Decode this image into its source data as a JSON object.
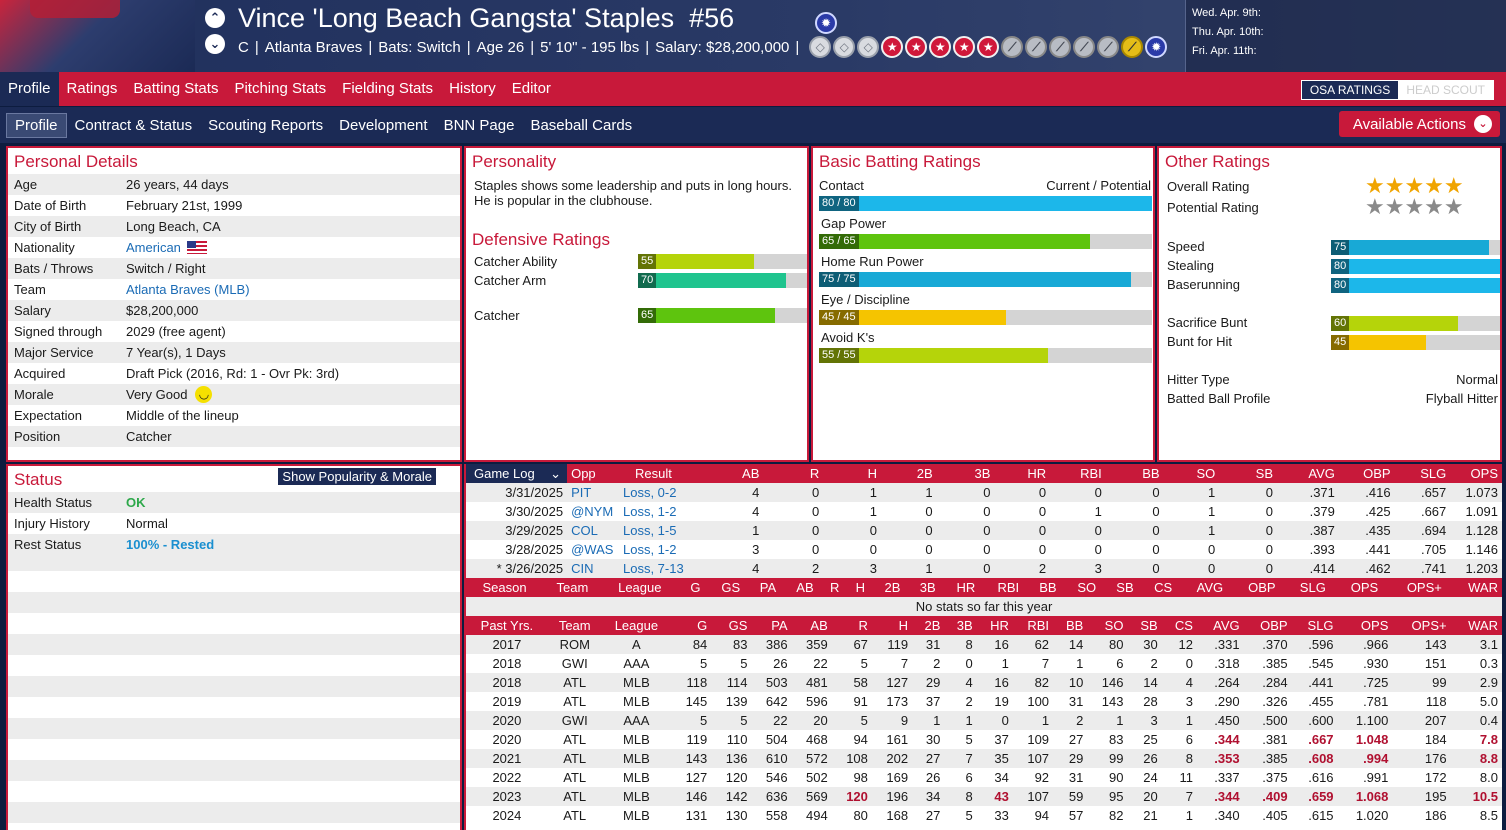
{
  "header": {
    "name": "Vince 'Long Beach Gangsta' Staples",
    "number": "#56",
    "position": "C",
    "team": "Atlanta Braves",
    "bats": "Bats: Switch",
    "age": "Age 26",
    "size": "5' 10\" - 195 lbs",
    "salary": "Salary: $28,200,000",
    "chev_up": "⌃",
    "chev_down": "⌄",
    "badges": [
      {
        "kind": "silver",
        "glyph": "◇"
      },
      {
        "kind": "silver",
        "glyph": "◇"
      },
      {
        "kind": "silver",
        "glyph": "◇"
      },
      {
        "kind": "red",
        "glyph": "★"
      },
      {
        "kind": "red",
        "glyph": "★"
      },
      {
        "kind": "red",
        "glyph": "★"
      },
      {
        "kind": "red",
        "glyph": "★"
      },
      {
        "kind": "red",
        "glyph": "★"
      },
      {
        "kind": "bat",
        "glyph": "⟋"
      },
      {
        "kind": "bat",
        "glyph": "⟋"
      },
      {
        "kind": "bat",
        "glyph": "⟋"
      },
      {
        "kind": "bat",
        "glyph": "⟋"
      },
      {
        "kind": "bat",
        "glyph": "⟋"
      },
      {
        "kind": "gold",
        "glyph": "⟋"
      },
      {
        "kind": "blue",
        "glyph": "✹"
      }
    ],
    "allstar_glyph": "✹",
    "schedule": [
      "Wed. Apr. 9th:",
      "Thu. Apr. 10th:",
      "Fri. Apr. 11th:"
    ]
  },
  "nav": {
    "main": [
      "Profile",
      "Ratings",
      "Batting Stats",
      "Pitching Stats",
      "Fielding Stats",
      "History",
      "Editor"
    ],
    "active": "Profile",
    "osa_on": "OSA RATINGS",
    "osa_off": "HEAD SCOUT",
    "sub": [
      "Profile",
      "Contract & Status",
      "Scouting Reports",
      "Development",
      "BNN Page",
      "Baseball Cards"
    ],
    "actions": "Available Actions",
    "actions_chev": "⌄"
  },
  "personal": {
    "title": "Personal Details",
    "rows": [
      {
        "k": "Age",
        "v": "26 years, 44 days"
      },
      {
        "k": "Date of Birth",
        "v": "February 21st, 1999"
      },
      {
        "k": "City of Birth",
        "v": "Long Beach, CA"
      },
      {
        "k": "Nationality",
        "v": "American",
        "link": true,
        "flag": true
      },
      {
        "k": "Bats / Throws",
        "v": "Switch / Right"
      },
      {
        "k": "Team",
        "v": "Atlanta Braves (MLB)",
        "link": true
      },
      {
        "k": "Salary",
        "v": "$28,200,000"
      },
      {
        "k": "Signed through",
        "v": "2029 (free agent)"
      },
      {
        "k": "Major Service",
        "v": "7 Year(s), 1 Days"
      },
      {
        "k": "Acquired",
        "v": "Draft Pick (2016, Rd: 1 - Ovr Pk: 3rd)"
      },
      {
        "k": "Morale",
        "v": "Very Good",
        "smile": true
      },
      {
        "k": "Expectation",
        "v": "Middle of the lineup"
      },
      {
        "k": "Position",
        "v": "Catcher"
      }
    ]
  },
  "personality": {
    "title": "Personality",
    "text": "Staples shows some leadership and puts in long hours. He is popular in the clubhouse."
  },
  "defensive": {
    "title": "Defensive Ratings",
    "rows": [
      {
        "label": "Catcher Ability",
        "value": 55,
        "color": "#b5d40a"
      },
      {
        "label": "Catcher Arm",
        "value": 70,
        "color": "#1fc48e"
      },
      {
        "label": "Catcher",
        "value": 65,
        "color": "#5ec40e"
      }
    ]
  },
  "batting": {
    "title": "Basic Batting Ratings",
    "legend": "Current / Potential",
    "rows": [
      {
        "label": "Contact",
        "text": "80 / 80",
        "value": 80,
        "color": "#1cb7ea"
      },
      {
        "label": "Gap Power",
        "text": "65 / 65",
        "value": 65,
        "color": "#5ec40e"
      },
      {
        "label": "Home Run Power",
        "text": "75 / 75",
        "value": 75,
        "color": "#18a9d6"
      },
      {
        "label": "Eye / Discipline",
        "text": "45 / 45",
        "value": 45,
        "color": "#f5c400"
      },
      {
        "label": "Avoid K's",
        "text": "55 / 55",
        "value": 55,
        "color": "#b5d40a"
      }
    ]
  },
  "other": {
    "title": "Other Ratings",
    "overall_label": "Overall Rating",
    "overall_stars": "★★★★★",
    "potential_label": "Potential Rating",
    "potential_stars": "★★★★★",
    "overall_color": "#f0a400",
    "potential_color": "#8a8a8a",
    "bars": [
      {
        "label": "Speed",
        "value": 75,
        "color": "#18a9d6"
      },
      {
        "label": "Stealing",
        "value": 80,
        "color": "#1cb7ea"
      },
      {
        "label": "Baserunning",
        "value": 80,
        "color": "#1cb7ea"
      },
      {
        "label": "Sacrifice Bunt",
        "value": 60,
        "color": "#b5d40a"
      },
      {
        "label": "Bunt for Hit",
        "value": 45,
        "color": "#f5c400"
      }
    ],
    "hitter_type_label": "Hitter Type",
    "hitter_type": "Normal",
    "batted_label": "Batted Ball Profile",
    "batted": "Flyball Hitter"
  },
  "status": {
    "title": "Status",
    "button": "Show Popularity & Morale",
    "rows": [
      {
        "k": "Health Status",
        "v": "OK",
        "cls": "okg"
      },
      {
        "k": "Injury History",
        "v": "Normal",
        "cls": ""
      },
      {
        "k": "Rest Status",
        "v": "100% - Rested",
        "cls": "restb"
      }
    ]
  },
  "gamelog": {
    "selector": "Game Log",
    "selector_chev": "⌄",
    "headers": [
      "Opp",
      "Result",
      "AB",
      "R",
      "H",
      "2B",
      "3B",
      "HR",
      "RBI",
      "BB",
      "SO",
      "SB",
      "AVG",
      "OBP",
      "SLG",
      "OPS"
    ],
    "rows": [
      [
        "3/31/2025",
        "PIT",
        "Loss, 0-2",
        "4",
        "0",
        "1",
        "1",
        "0",
        "0",
        "0",
        "0",
        "1",
        "0",
        ".371",
        ".416",
        ".657",
        "1.073"
      ],
      [
        "3/30/2025",
        "@NYM",
        "Loss, 1-2",
        "4",
        "0",
        "1",
        "0",
        "0",
        "0",
        "1",
        "0",
        "1",
        "0",
        ".379",
        ".425",
        ".667",
        "1.091"
      ],
      [
        "3/29/2025",
        "COL",
        "Loss, 1-5",
        "1",
        "0",
        "0",
        "0",
        "0",
        "0",
        "0",
        "0",
        "1",
        "0",
        ".387",
        ".435",
        ".694",
        "1.128"
      ],
      [
        "3/28/2025",
        "@WAS",
        "Loss, 1-2",
        "3",
        "0",
        "0",
        "0",
        "0",
        "0",
        "0",
        "0",
        "0",
        "0",
        ".393",
        ".441",
        ".705",
        "1.146"
      ],
      [
        "* 3/26/2025",
        "CIN",
        "Loss, 7-13",
        "4",
        "2",
        "3",
        "1",
        "0",
        "2",
        "3",
        "0",
        "0",
        "0",
        ".414",
        ".462",
        ".741",
        "1.203"
      ]
    ]
  },
  "season": {
    "headers": [
      "Season",
      "Team",
      "League",
      "G",
      "GS",
      "PA",
      "AB",
      "R",
      "H",
      "2B",
      "3B",
      "HR",
      "RBI",
      "BB",
      "SO",
      "SB",
      "CS",
      "AVG",
      "OBP",
      "SLG",
      "OPS",
      "OPS+",
      "WAR"
    ],
    "empty": "No stats so far this year"
  },
  "past": {
    "headers": [
      "Past Yrs.",
      "Team",
      "League",
      "G",
      "GS",
      "PA",
      "AB",
      "R",
      "H",
      "2B",
      "3B",
      "HR",
      "RBI",
      "BB",
      "SO",
      "SB",
      "CS",
      "AVG",
      "OBP",
      "SLG",
      "OPS",
      "OPS+",
      "WAR"
    ],
    "rows": [
      [
        "2017",
        "ROM",
        "A",
        "84",
        "83",
        "386",
        "359",
        "67",
        "119",
        "31",
        "8",
        "16",
        "62",
        "14",
        "80",
        "30",
        "12",
        ".331",
        ".370",
        ".596",
        ".966",
        "143",
        "3.1"
      ],
      [
        "2018",
        "GWI",
        "AAA",
        "5",
        "5",
        "26",
        "22",
        "5",
        "7",
        "2",
        "0",
        "1",
        "7",
        "1",
        "6",
        "2",
        "0",
        ".318",
        ".385",
        ".545",
        ".930",
        "151",
        "0.3"
      ],
      [
        "2018",
        "ATL",
        "MLB",
        "118",
        "114",
        "503",
        "481",
        "58",
        "127",
        "29",
        "4",
        "16",
        "82",
        "10",
        "146",
        "14",
        "4",
        ".264",
        ".284",
        ".441",
        ".725",
        "99",
        "2.9"
      ],
      [
        "2019",
        "ATL",
        "MLB",
        "145",
        "139",
        "642",
        "596",
        "91",
        "173",
        "37",
        "2",
        "19",
        "100",
        "31",
        "143",
        "28",
        "3",
        ".290",
        ".326",
        ".455",
        ".781",
        "118",
        "5.0"
      ],
      [
        "2020",
        "GWI",
        "AAA",
        "5",
        "5",
        "22",
        "20",
        "5",
        "9",
        "1",
        "1",
        "0",
        "1",
        "2",
        "1",
        "3",
        "1",
        ".450",
        ".500",
        ".600",
        "1.100",
        "207",
        "0.4"
      ],
      [
        "2020",
        "ATL",
        "MLB",
        "119",
        "110",
        "504",
        "468",
        "94",
        "161",
        "30",
        "5",
        "37",
        "109",
        "27",
        "83",
        "25",
        "6",
        ".344",
        ".381",
        ".667",
        "1.048",
        "184",
        "7.8"
      ],
      [
        "2021",
        "ATL",
        "MLB",
        "143",
        "136",
        "610",
        "572",
        "108",
        "202",
        "27",
        "7",
        "35",
        "107",
        "29",
        "99",
        "26",
        "8",
        ".353",
        ".385",
        ".608",
        ".994",
        "176",
        "8.8"
      ],
      [
        "2022",
        "ATL",
        "MLB",
        "127",
        "120",
        "546",
        "502",
        "98",
        "169",
        "26",
        "6",
        "34",
        "92",
        "31",
        "90",
        "24",
        "11",
        ".337",
        ".375",
        ".616",
        ".991",
        "172",
        "8.0"
      ],
      [
        "2023",
        "ATL",
        "MLB",
        "146",
        "142",
        "636",
        "569",
        "120",
        "196",
        "34",
        "8",
        "43",
        "107",
        "59",
        "95",
        "20",
        "7",
        ".344",
        ".409",
        ".659",
        "1.068",
        "195",
        "10.5"
      ],
      [
        "2024",
        "ATL",
        "MLB",
        "131",
        "130",
        "558",
        "494",
        "80",
        "168",
        "27",
        "5",
        "33",
        "94",
        "57",
        "82",
        "21",
        "1",
        ".340",
        ".405",
        ".615",
        "1.020",
        "186",
        "8.5"
      ]
    ],
    "highlights": [
      [
        5,
        17
      ],
      [
        5,
        19
      ],
      [
        5,
        20
      ],
      [
        5,
        22
      ],
      [
        6,
        17
      ],
      [
        6,
        19
      ],
      [
        6,
        20
      ],
      [
        6,
        22
      ],
      [
        8,
        7
      ],
      [
        8,
        11
      ],
      [
        8,
        17
      ],
      [
        8,
        18
      ],
      [
        8,
        19
      ],
      [
        8,
        20
      ],
      [
        8,
        22
      ]
    ]
  }
}
